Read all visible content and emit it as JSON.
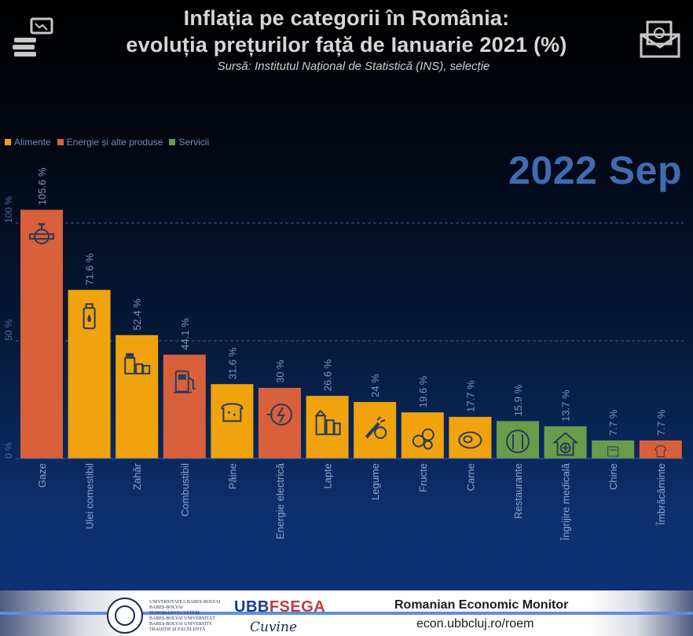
{
  "header": {
    "title_line1": "Inflația pe categorii în România:",
    "title_line2": "evoluția prețurilor față de Ianuarie 2021 (%)",
    "source": "Sursă:  Institutul Național de Statistică (INS), selecție"
  },
  "period": "2022 Sep",
  "legend": [
    {
      "label": "Alimente",
      "color": "#f0a30c"
    },
    {
      "label": "Energie și alte produse",
      "color": "#d8603a"
    },
    {
      "label": "Servicii",
      "color": "#6a9c4a"
    }
  ],
  "chart_data": {
    "type": "bar",
    "title": "Inflația pe categorii în România: evoluția prețurilor față de Ianuarie 2021 (%)",
    "ylim": [
      0,
      110
    ],
    "yticks": [
      {
        "value": 0,
        "label": "0 %"
      },
      {
        "value": 50,
        "label": "50 %"
      },
      {
        "value": 100,
        "label": "100 %"
      }
    ],
    "categories": [
      "Gaze",
      "Ulei comestibil",
      "Zahăr",
      "Combustibil",
      "Pâine",
      "Energie electrică",
      "Lapte",
      "Legume",
      "Fructe",
      "Carne",
      "Restaurante",
      "Îngrijire medicală",
      "Chirie",
      "Îmbrăcăminte"
    ],
    "values": [
      105.6,
      71.6,
      52.4,
      44.1,
      31.6,
      30,
      26.6,
      24,
      19.6,
      17.7,
      15.9,
      13.7,
      7.7,
      7.7
    ],
    "value_labels": [
      "105.6 %",
      "71.6 %",
      "52.4 %",
      "44.1 %",
      "31.6 %",
      "30 %",
      "26.6 %",
      "24 %",
      "19.6 %",
      "17.7 %",
      "15.9 %",
      "13.7 %",
      "7.7 %",
      "7.7 %"
    ],
    "groups": [
      "Energie și alte produse",
      "Alimente",
      "Alimente",
      "Energie și alte produse",
      "Alimente",
      "Energie și alte produse",
      "Alimente",
      "Alimente",
      "Alimente",
      "Alimente",
      "Servicii",
      "Servicii",
      "Servicii",
      "Energie și alte produse"
    ],
    "icons": [
      "gas-pipe-icon",
      "oil-bottle-icon",
      "sugar-jars-icon",
      "fuel-pump-icon",
      "bread-icon",
      "electric-plug-icon",
      "milk-cartons-icon",
      "vegetables-icon",
      "fruits-icon",
      "meat-icon",
      "restaurant-icon",
      "medical-house-icon",
      "rent-icon",
      "clothing-icon"
    ],
    "grid": "dashed horizontal lines at 50 % and 100 %",
    "legend_position": "top-left"
  },
  "footer": {
    "univ_lines": [
      "UNIVERSITATEA BABEȘ-BOLYAI",
      "BABEȘ-BOLYAI TUDOMÁNYEGYETEM",
      "BABEȘ-BOLYAI UNIVERSITÄT",
      "BABEȘ-BOLYAI UNIVERSITY",
      "TRADIȚIE ȘI EXCELENȚĂ"
    ],
    "ubb_prefix": "UBB",
    "ubb_suffix": "FSEGA",
    "signature": "Cuvine",
    "monitor_title": "Romanian Economic Monitor",
    "monitor_url": "econ.ubbcluj.ro/roem"
  }
}
